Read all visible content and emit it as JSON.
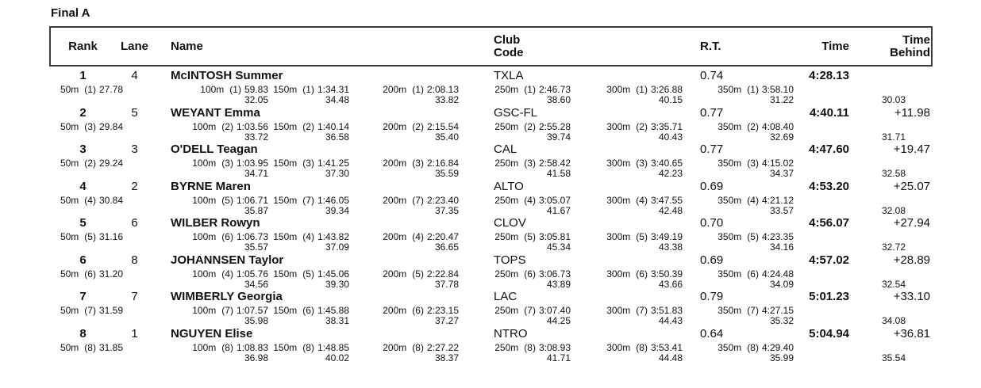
{
  "title": "Final A",
  "colors": {
    "background": "#ffffff",
    "text": "#111111",
    "header_border": "#3c3c3c"
  },
  "headers": {
    "rank": "Rank",
    "lane": "Lane",
    "name": "Name",
    "club_line1": "Club",
    "club_line2": "Code",
    "rt": "R.T.",
    "time": "Time",
    "behind_line1": "Time",
    "behind_line2": "Behind"
  },
  "swimmers": [
    {
      "rank": "1",
      "lane": "4",
      "name": "McINTOSH Summer",
      "club": "TXLA",
      "rt": "0.74",
      "time": "4:28.13",
      "behind": "",
      "splits": [
        {
          "label": "50m",
          "place": "(1)",
          "time": "27.78",
          "lap": ""
        },
        {
          "label": "100m",
          "place": "(1)",
          "time": "59.83",
          "lap": "32.05"
        },
        {
          "label": "150m",
          "place": "(1)",
          "time": "1:34.31",
          "lap": "34.48"
        },
        {
          "label": "200m",
          "place": "(1)",
          "time": "2:08.13",
          "lap": "33.82"
        },
        {
          "label": "250m",
          "place": "(1)",
          "time": "2:46.73",
          "lap": "38.60"
        },
        {
          "label": "300m",
          "place": "(1)",
          "time": "3:26.88",
          "lap": "40.15"
        },
        {
          "label": "350m",
          "place": "(1)",
          "time": "3:58.10",
          "lap": "31.22"
        }
      ],
      "final_lap": "30.03"
    },
    {
      "rank": "2",
      "lane": "5",
      "name": "WEYANT Emma",
      "club": "GSC-FL",
      "rt": "0.77",
      "time": "4:40.11",
      "behind": "+11.98",
      "splits": [
        {
          "label": "50m",
          "place": "(3)",
          "time": "29.84",
          "lap": ""
        },
        {
          "label": "100m",
          "place": "(2)",
          "time": "1:03.56",
          "lap": "33.72"
        },
        {
          "label": "150m",
          "place": "(2)",
          "time": "1:40.14",
          "lap": "36.58"
        },
        {
          "label": "200m",
          "place": "(2)",
          "time": "2:15.54",
          "lap": "35.40"
        },
        {
          "label": "250m",
          "place": "(2)",
          "time": "2:55.28",
          "lap": "39.74"
        },
        {
          "label": "300m",
          "place": "(2)",
          "time": "3:35.71",
          "lap": "40.43"
        },
        {
          "label": "350m",
          "place": "(2)",
          "time": "4:08.40",
          "lap": "32.69"
        }
      ],
      "final_lap": "31.71"
    },
    {
      "rank": "3",
      "lane": "3",
      "name": "O'DELL Teagan",
      "club": "CAL",
      "rt": "0.77",
      "time": "4:47.60",
      "behind": "+19.47",
      "splits": [
        {
          "label": "50m",
          "place": "(2)",
          "time": "29.24",
          "lap": ""
        },
        {
          "label": "100m",
          "place": "(3)",
          "time": "1:03.95",
          "lap": "34.71"
        },
        {
          "label": "150m",
          "place": "(3)",
          "time": "1:41.25",
          "lap": "37.30"
        },
        {
          "label": "200m",
          "place": "(3)",
          "time": "2:16.84",
          "lap": "35.59"
        },
        {
          "label": "250m",
          "place": "(3)",
          "time": "2:58.42",
          "lap": "41.58"
        },
        {
          "label": "300m",
          "place": "(3)",
          "time": "3:40.65",
          "lap": "42.23"
        },
        {
          "label": "350m",
          "place": "(3)",
          "time": "4:15.02",
          "lap": "34.37"
        }
      ],
      "final_lap": "32.58"
    },
    {
      "rank": "4",
      "lane": "2",
      "name": "BYRNE Maren",
      "club": "ALTO",
      "rt": "0.69",
      "time": "4:53.20",
      "behind": "+25.07",
      "splits": [
        {
          "label": "50m",
          "place": "(4)",
          "time": "30.84",
          "lap": ""
        },
        {
          "label": "100m",
          "place": "(5)",
          "time": "1:06.71",
          "lap": "35.87"
        },
        {
          "label": "150m",
          "place": "(7)",
          "time": "1:46.05",
          "lap": "39.34"
        },
        {
          "label": "200m",
          "place": "(7)",
          "time": "2:23.40",
          "lap": "37.35"
        },
        {
          "label": "250m",
          "place": "(4)",
          "time": "3:05.07",
          "lap": "41.67"
        },
        {
          "label": "300m",
          "place": "(4)",
          "time": "3:47.55",
          "lap": "42.48"
        },
        {
          "label": "350m",
          "place": "(4)",
          "time": "4:21.12",
          "lap": "33.57"
        }
      ],
      "final_lap": "32.08"
    },
    {
      "rank": "5",
      "lane": "6",
      "name": "WILBER Rowyn",
      "club": "CLOV",
      "rt": "0.70",
      "time": "4:56.07",
      "behind": "+27.94",
      "splits": [
        {
          "label": "50m",
          "place": "(5)",
          "time": "31.16",
          "lap": ""
        },
        {
          "label": "100m",
          "place": "(6)",
          "time": "1:06.73",
          "lap": "35.57"
        },
        {
          "label": "150m",
          "place": "(4)",
          "time": "1:43.82",
          "lap": "37.09"
        },
        {
          "label": "200m",
          "place": "(4)",
          "time": "2:20.47",
          "lap": "36.65"
        },
        {
          "label": "250m",
          "place": "(5)",
          "time": "3:05.81",
          "lap": "45.34"
        },
        {
          "label": "300m",
          "place": "(5)",
          "time": "3:49.19",
          "lap": "43.38"
        },
        {
          "label": "350m",
          "place": "(5)",
          "time": "4:23.35",
          "lap": "34.16"
        }
      ],
      "final_lap": "32.72"
    },
    {
      "rank": "6",
      "lane": "8",
      "name": "JOHANNSEN Taylor",
      "club": "TOPS",
      "rt": "0.69",
      "time": "4:57.02",
      "behind": "+28.89",
      "splits": [
        {
          "label": "50m",
          "place": "(6)",
          "time": "31.20",
          "lap": ""
        },
        {
          "label": "100m",
          "place": "(4)",
          "time": "1:05.76",
          "lap": "34.56"
        },
        {
          "label": "150m",
          "place": "(5)",
          "time": "1:45.06",
          "lap": "39.30"
        },
        {
          "label": "200m",
          "place": "(5)",
          "time": "2:22.84",
          "lap": "37.78"
        },
        {
          "label": "250m",
          "place": "(6)",
          "time": "3:06.73",
          "lap": "43.89"
        },
        {
          "label": "300m",
          "place": "(6)",
          "time": "3:50.39",
          "lap": "43.66"
        },
        {
          "label": "350m",
          "place": "(6)",
          "time": "4:24.48",
          "lap": "34.09"
        }
      ],
      "final_lap": "32.54"
    },
    {
      "rank": "7",
      "lane": "7",
      "name": "WIMBERLY Georgia",
      "club": "LAC",
      "rt": "0.79",
      "time": "5:01.23",
      "behind": "+33.10",
      "splits": [
        {
          "label": "50m",
          "place": "(7)",
          "time": "31.59",
          "lap": ""
        },
        {
          "label": "100m",
          "place": "(7)",
          "time": "1:07.57",
          "lap": "35.98"
        },
        {
          "label": "150m",
          "place": "(6)",
          "time": "1:45.88",
          "lap": "38.31"
        },
        {
          "label": "200m",
          "place": "(6)",
          "time": "2:23.15",
          "lap": "37.27"
        },
        {
          "label": "250m",
          "place": "(7)",
          "time": "3:07.40",
          "lap": "44.25"
        },
        {
          "label": "300m",
          "place": "(7)",
          "time": "3:51.83",
          "lap": "44.43"
        },
        {
          "label": "350m",
          "place": "(7)",
          "time": "4:27.15",
          "lap": "35.32"
        }
      ],
      "final_lap": "34.08"
    },
    {
      "rank": "8",
      "lane": "1",
      "name": "NGUYEN Elise",
      "club": "NTRO",
      "rt": "0.64",
      "time": "5:04.94",
      "behind": "+36.81",
      "splits": [
        {
          "label": "50m",
          "place": "(8)",
          "time": "31.85",
          "lap": ""
        },
        {
          "label": "100m",
          "place": "(8)",
          "time": "1:08.83",
          "lap": "36.98"
        },
        {
          "label": "150m",
          "place": "(8)",
          "time": "1:48.85",
          "lap": "40.02"
        },
        {
          "label": "200m",
          "place": "(8)",
          "time": "2:27.22",
          "lap": "38.37"
        },
        {
          "label": "250m",
          "place": "(8)",
          "time": "3:08.93",
          "lap": "41.71"
        },
        {
          "label": "300m",
          "place": "(8)",
          "time": "3:53.41",
          "lap": "44.48"
        },
        {
          "label": "350m",
          "place": "(8)",
          "time": "4:29.40",
          "lap": "35.99"
        }
      ],
      "final_lap": "35.54"
    }
  ]
}
